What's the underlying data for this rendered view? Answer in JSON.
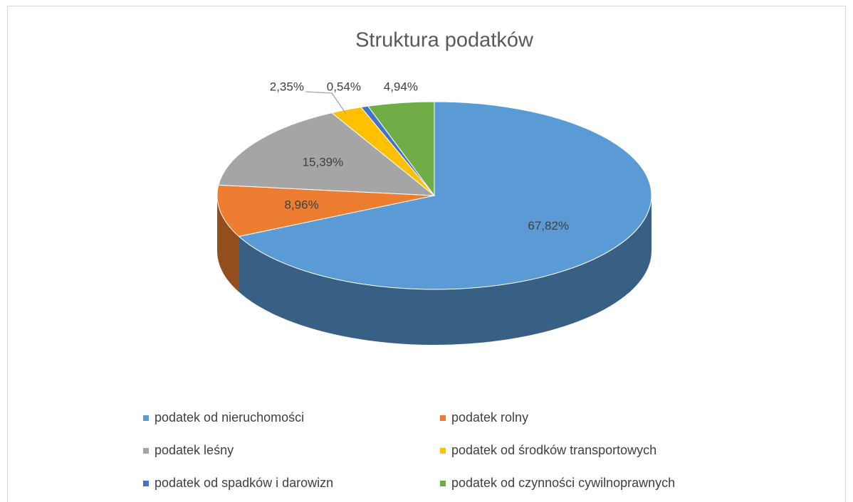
{
  "chart_data": {
    "type": "pie",
    "title": "Struktura podatków",
    "categories": [
      "podatek od nieruchomości",
      "podatek rolny",
      "podatek leśny",
      "podatek od środków transportowych",
      "podatek od spadków i darowizn",
      "podatek od czynności cywilnoprawnych"
    ],
    "values": [
      67.82,
      8.96,
      15.39,
      2.35,
      0.54,
      4.94
    ],
    "value_labels": [
      "67,82%",
      "8,96%",
      "15,39%",
      "2,35%",
      "0,54%",
      "4,94%"
    ],
    "colors": [
      "#5b9bd5",
      "#ed7d31",
      "#a5a5a5",
      "#ffc000",
      "#4472c4",
      "#70ad47"
    ]
  }
}
